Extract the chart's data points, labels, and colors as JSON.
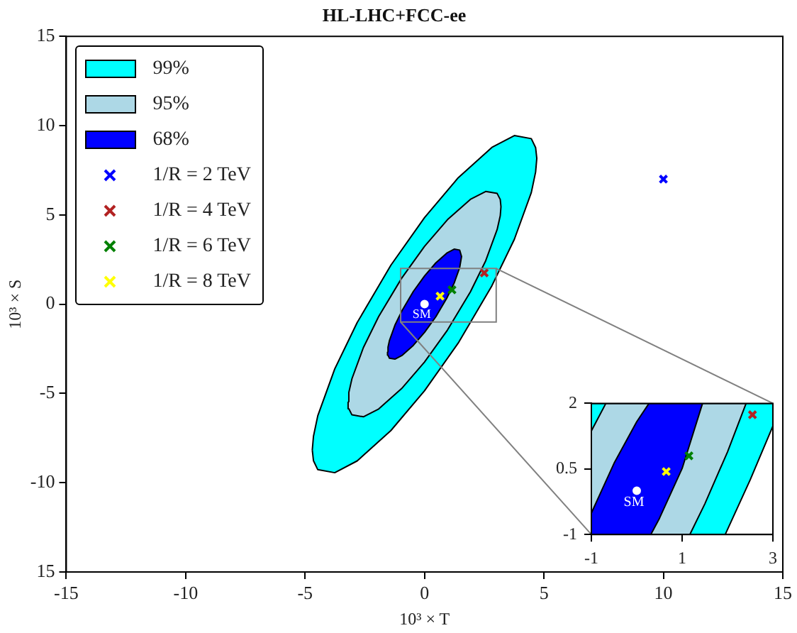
{
  "chart_data": [
    {
      "type": "scatter",
      "title": "HL-LHC+FCC-ee",
      "xlabel": "10³ × T",
      "ylabel": "10³ × S",
      "xlim": [
        -15,
        15
      ],
      "ylim": [
        -15,
        15
      ],
      "xticks": [
        -15,
        -10,
        -5,
        0,
        5,
        10,
        15
      ],
      "yticks": [
        {
          "value": -15,
          "label": "15"
        },
        -10,
        -5,
        0,
        5,
        10,
        15
      ],
      "grid": false,
      "legend": "top left",
      "marker": "cross",
      "series": [
        {
          "type": "area",
          "marker": "none",
          "name": "99%",
          "color": "#00ffff",
          "x": [
            -4.7,
            -4.65,
            -4.47,
            -3.76,
            -2.82,
            -1.41,
            0,
            1.41,
            2.82,
            3.76,
            4.47,
            4.65,
            4.7,
            4.65,
            4.47,
            3.76,
            2.82,
            1.41,
            0,
            -1.41,
            -2.82,
            -3.76,
            -4.47,
            -4.65,
            -4.7
          ],
          "values": [
            -8.17,
            -7.4,
            -6.25,
            -3.63,
            -1.03,
            2.18,
            4.85,
            7.08,
            8.78,
            9.44,
            9.27,
            8.77,
            8.17,
            7.4,
            6.25,
            3.63,
            1.03,
            -2.18,
            -4.85,
            -7.08,
            -8.78,
            -9.44,
            -9.27,
            -8.77,
            -8.17
          ]
        },
        {
          "type": "area",
          "marker": "none",
          "name": "95%",
          "color": "#add8e6",
          "x": [
            -3.2,
            -3.17,
            -3.04,
            -2.56,
            -1.92,
            -0.96,
            0,
            0.96,
            1.92,
            2.56,
            3.04,
            3.17,
            3.2,
            3.17,
            3.04,
            2.56,
            1.92,
            0.96,
            0,
            -0.96,
            -1.92,
            -2.56,
            -3.04,
            -3.17,
            -3.2
          ],
          "values": [
            -5.46,
            -4.95,
            -4.18,
            -2.43,
            -0.69,
            1.45,
            3.24,
            4.73,
            5.87,
            6.31,
            6.2,
            5.86,
            5.46,
            4.95,
            4.18,
            2.43,
            0.69,
            -1.45,
            -3.24,
            -4.73,
            -5.87,
            -6.31,
            -6.2,
            -5.86,
            -5.46
          ]
        },
        {
          "type": "area",
          "marker": "none",
          "name": "68%",
          "color": "#0000ff",
          "x": [
            -1.55,
            -1.53,
            -1.47,
            -1.24,
            -0.93,
            -0.47,
            0,
            0.47,
            0.93,
            1.24,
            1.47,
            1.55,
            1.47,
            1.24,
            0.93,
            0.47,
            0,
            -0.47,
            -0.93,
            -1.24,
            -1.47,
            -1.53,
            -1.55
          ],
          "values": [
            -2.67,
            -2.41,
            -2.04,
            -1.18,
            -0.33,
            0.71,
            1.58,
            2.31,
            2.86,
            3.08,
            3.03,
            2.67,
            2.04,
            1.18,
            0.33,
            -0.71,
            -1.58,
            -2.31,
            -2.86,
            -3.08,
            -3.03,
            -2.86,
            -2.67
          ]
        },
        {
          "name": "1/R = 2 TeV",
          "color": "#0000ff",
          "x": [
            10
          ],
          "values": [
            7
          ]
        },
        {
          "name": "1/R = 4 TeV",
          "color": "#b22222",
          "x": [
            2.5
          ],
          "values": [
            1.75
          ]
        },
        {
          "name": "1/R = 6 TeV",
          "color": "#008000",
          "x": [
            1.15
          ],
          "values": [
            0.8
          ]
        },
        {
          "name": "1/R = 8 TeV",
          "color": "#ffff00",
          "x": [
            0.65
          ],
          "values": [
            0.45
          ]
        },
        {
          "marker": "circle",
          "color": "#ffffff",
          "x": [
            0
          ],
          "values": [
            0
          ]
        }
      ],
      "annotations": [
        {
          "text": "SM",
          "x": 0,
          "y": 0
        }
      ]
    },
    {
      "type": "scatter",
      "xlim": [
        -1,
        3
      ],
      "ylim": [
        -1,
        2
      ],
      "xticks": [
        -1,
        1,
        3
      ],
      "yticks": [
        -1,
        0.5,
        2
      ],
      "grid": false,
      "marker": "cross",
      "series": [
        {
          "type": "area",
          "marker": "none",
          "color": "#00ffff",
          "x": [
            -1,
            -1,
            3,
            3,
            2.5,
            1.95,
            -1
          ],
          "values": [
            -1,
            2,
            2,
            1.48,
            0.25,
            -1,
            -1
          ]
        },
        {
          "type": "area",
          "marker": "none",
          "color": "#add8e6",
          "x": [
            -1,
            -1,
            -0.68,
            2.41,
            2,
            1.5,
            1.17,
            -1
          ],
          "values": [
            -1,
            1.37,
            2,
            2,
            0.89,
            -0.3,
            -1,
            -1
          ]
        },
        {
          "type": "area",
          "marker": "none",
          "color": "#0000ff",
          "x": [
            -1,
            -1,
            -0.5,
            0,
            0.27,
            1.45,
            1,
            0.5,
            0.31,
            -1
          ],
          "values": [
            -1,
            -0.51,
            0.63,
            1.58,
            2,
            2,
            0.51,
            -0.63,
            -1,
            -1
          ]
        },
        {
          "color": "#b22222",
          "x": [
            2.55
          ],
          "values": [
            1.74
          ]
        },
        {
          "color": "#008000",
          "x": [
            1.15
          ],
          "values": [
            0.8
          ]
        },
        {
          "color": "#ffff00",
          "x": [
            0.65
          ],
          "values": [
            0.44
          ]
        },
        {
          "marker": "circle",
          "color": "#ffffff",
          "x": [
            0
          ],
          "values": [
            0
          ]
        }
      ],
      "annotations": [
        {
          "text": "SM",
          "x": 0,
          "y": 0
        }
      ]
    }
  ]
}
